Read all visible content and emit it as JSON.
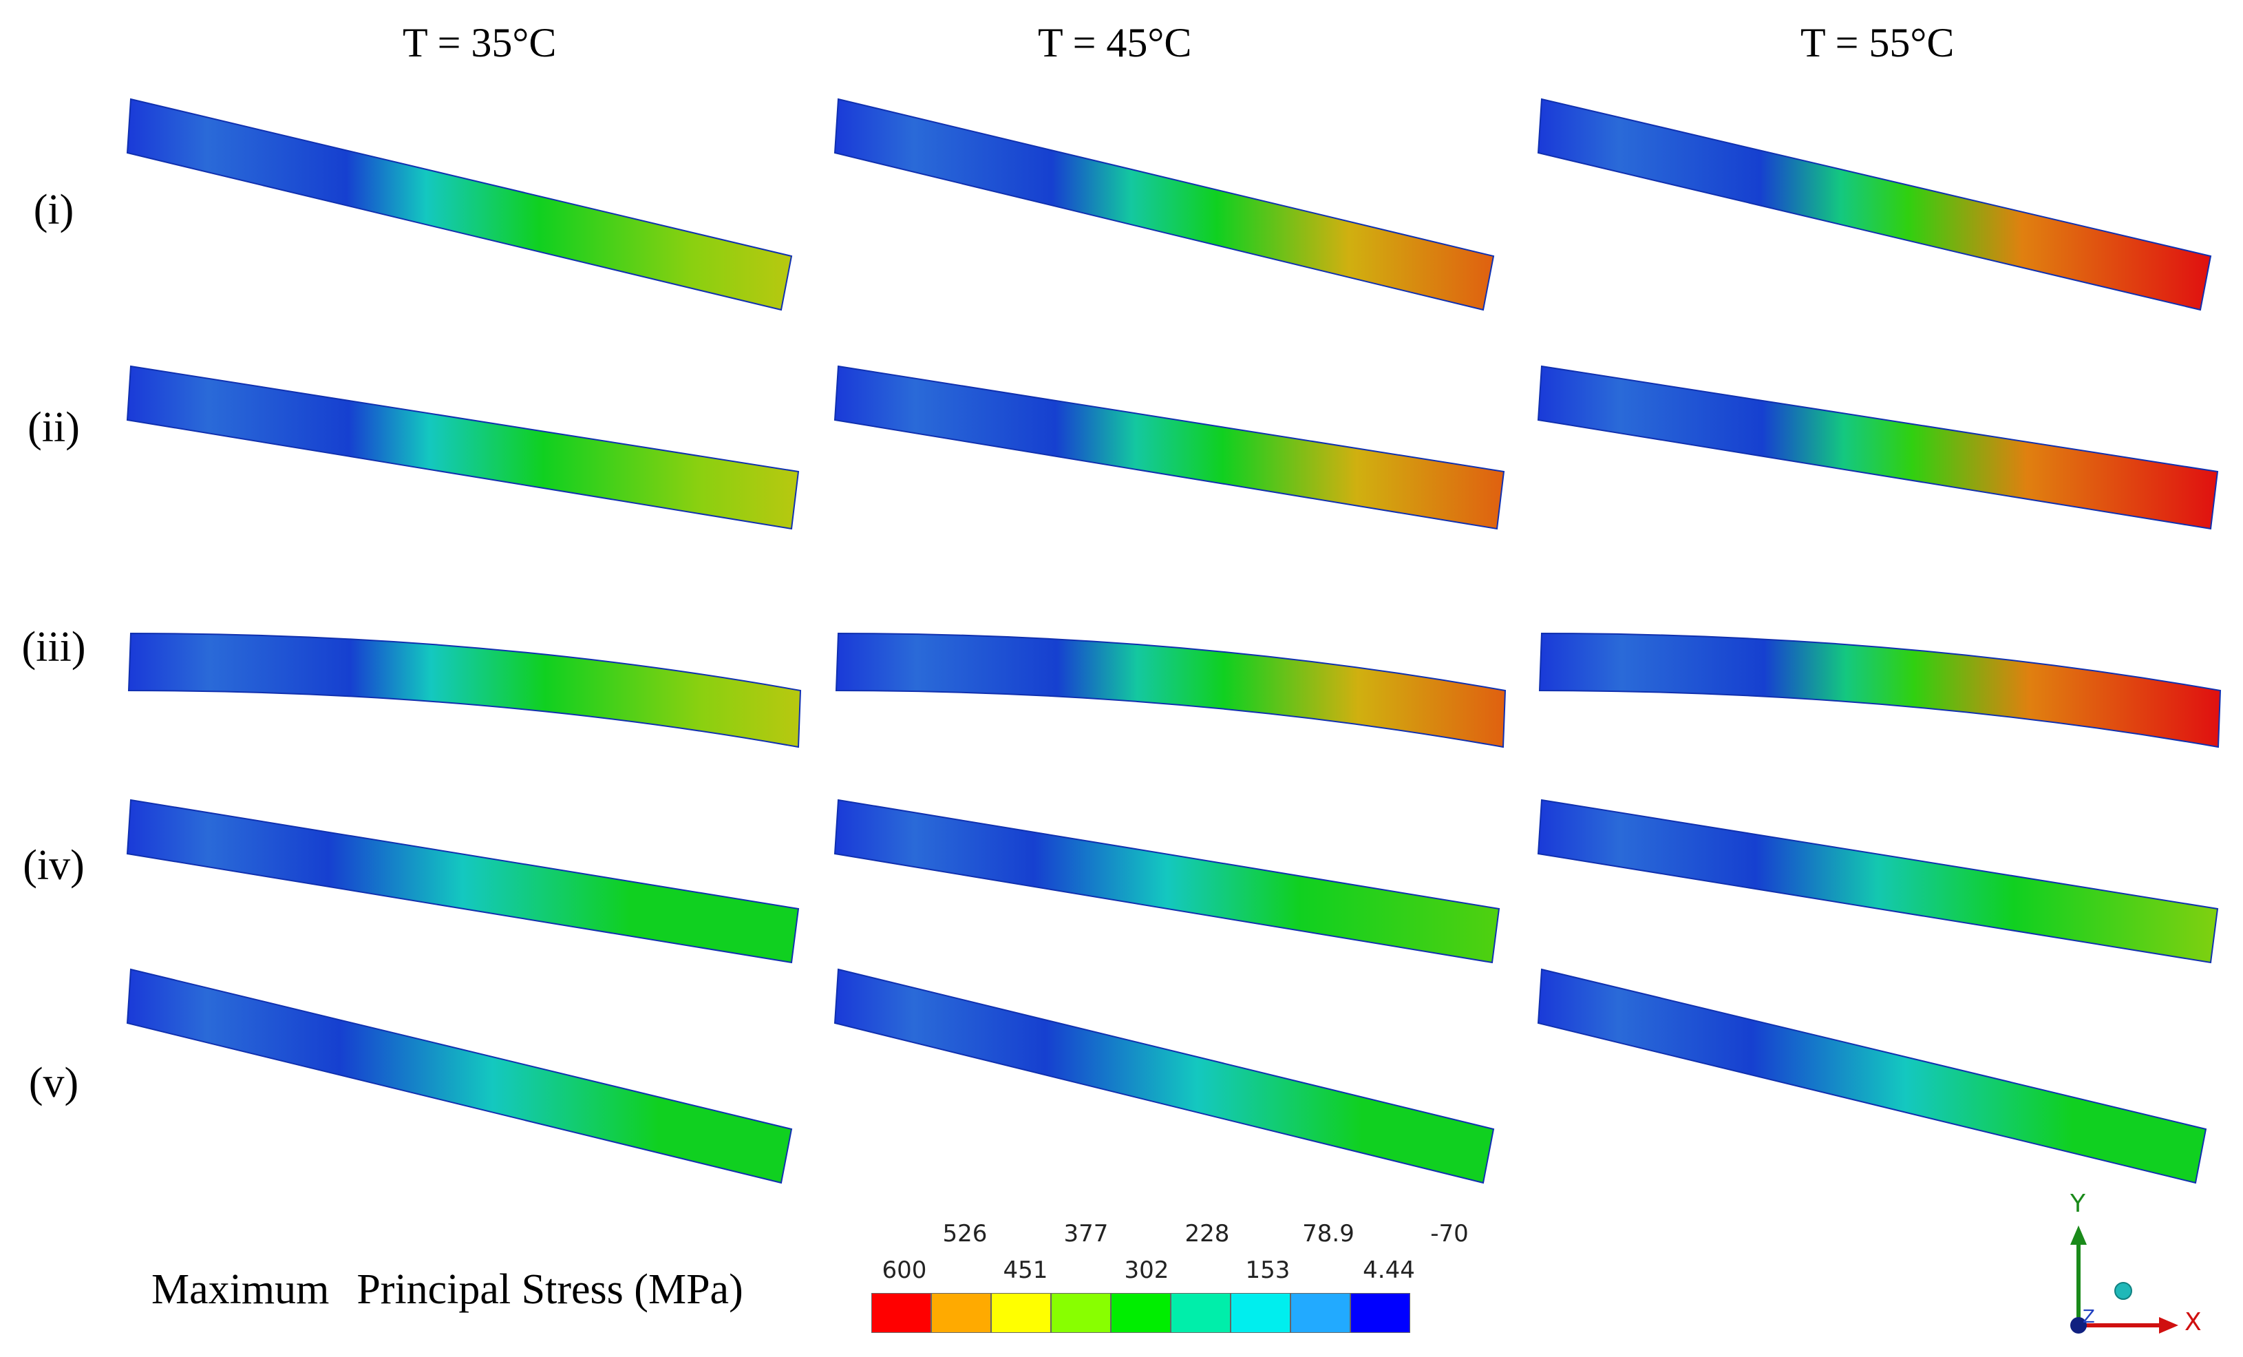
{
  "column_titles": [
    "T = 35°C",
    "T = 45°C",
    "T = 55°C"
  ],
  "row_labels": [
    "(i)",
    "(ii)",
    "(iii)",
    "(iv)",
    "(v)"
  ],
  "legend": {
    "title_word1": "Maximum",
    "title_rest": "Principal Stress (MPa)",
    "labels_top": [
      "526",
      "377",
      "228",
      "78.9",
      "-70"
    ],
    "labels_bottom": [
      "600",
      "451",
      "302",
      "153",
      "4.44"
    ],
    "colors": [
      "#ff0000",
      "#ffaa00",
      "#ffff00",
      "#88ff00",
      "#00ee00",
      "#00eeaa",
      "#00eeee",
      "#22aaff",
      "#0000ff"
    ]
  },
  "axes": {
    "y_label": "Y",
    "x_label": "X",
    "z_label": "Z"
  }
}
